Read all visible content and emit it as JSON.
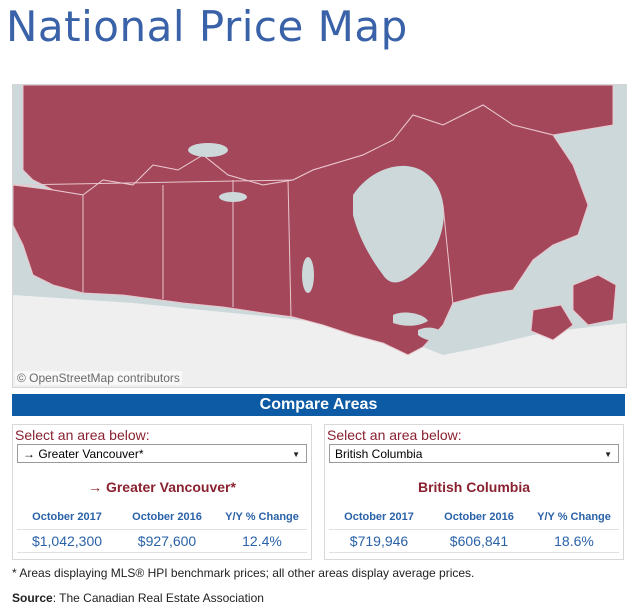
{
  "page": {
    "title": "National Price Map"
  },
  "map": {
    "attribution": "© OpenStreetMap contributors",
    "colors": {
      "water": "#ccd8da",
      "land": "#efefef",
      "region": "#a5475b",
      "border": "#e8c7ce"
    }
  },
  "compare": {
    "heading": "Compare Areas",
    "panels": [
      {
        "select_label": "Select an area below:",
        "selected": "→ Greater Vancouver*",
        "area_title": "→ Greater Vancouver*",
        "columns": [
          {
            "header": "October 2017",
            "value": "$1,042,300"
          },
          {
            "header": "October 2016",
            "value": "$927,600"
          },
          {
            "header": "Y/Y % Change",
            "value": "12.4%"
          }
        ]
      },
      {
        "select_label": "Select an area below:",
        "selected": "British Columbia",
        "area_title": "British Columbia",
        "columns": [
          {
            "header": "October 2017",
            "value": "$719,946"
          },
          {
            "header": "October 2016",
            "value": "$606,841"
          },
          {
            "header": "Y/Y % Change",
            "value": "18.6%"
          }
        ]
      }
    ]
  },
  "footnote": "* Areas displaying MLS® HPI benchmark prices; all other areas display average prices.",
  "source": {
    "label": "Source",
    "text": ": The Canadian Real Estate Association"
  }
}
